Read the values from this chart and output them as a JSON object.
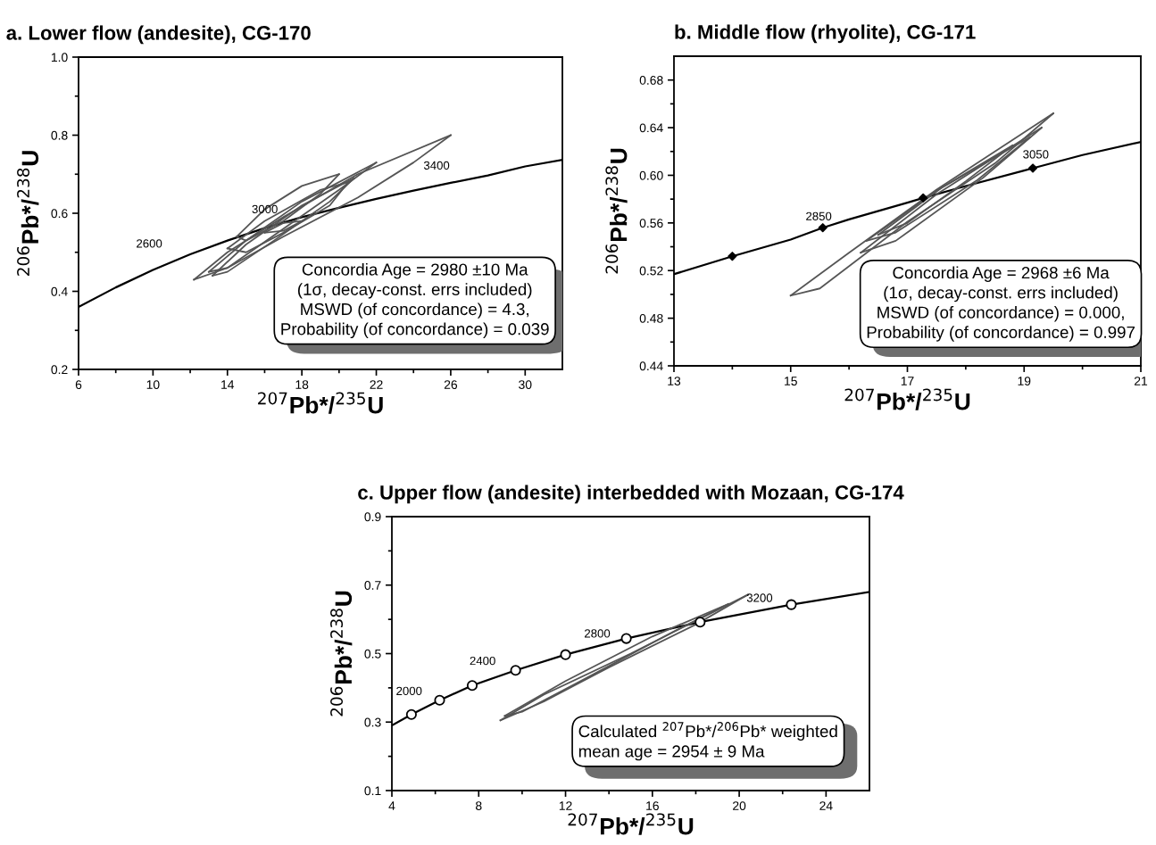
{
  "chart_data": [
    {
      "type": "line",
      "title": "a. Lower flow (andesite), CG-170",
      "xlabel": "$^{207}$Pb*/$^{235}$U",
      "ylabel": "$^{206}$Pb*/$^{238}$U",
      "xlim": [
        6,
        32
      ],
      "xticks": [
        6,
        {
          "value": 8,
          "label": null
        },
        10,
        {
          "value": 12,
          "label": null
        },
        14,
        {
          "value": 16,
          "label": null
        },
        18,
        {
          "value": 20,
          "label": null
        },
        22,
        {
          "value": 24,
          "label": null
        },
        26,
        {
          "value": 28,
          "label": null
        },
        30
      ],
      "ylim": [
        0.2,
        1.0
      ],
      "yticks": [
        {
          "value": 0.2,
          "label": "0.2"
        },
        {
          "value": 0.3,
          "label": null
        },
        {
          "value": 0.4,
          "label": "0.4"
        },
        {
          "value": 0.5,
          "label": null
        },
        {
          "value": 0.6,
          "label": "0.6"
        },
        {
          "value": 0.7,
          "label": null
        },
        {
          "value": 0.8,
          "label": "0.8"
        },
        {
          "value": 0.9,
          "label": null
        },
        {
          "value": 1.0,
          "label": "1.0"
        }
      ],
      "grid": false,
      "series": [
        {
          "color": "#000000",
          "x": [
            6,
            8,
            10,
            12,
            14,
            16,
            18,
            20,
            22,
            24,
            26,
            28,
            30,
            32
          ],
          "values": [
            0.36,
            0.41,
            0.455,
            0.495,
            0.53,
            0.562,
            0.59,
            0.614,
            0.637,
            0.658,
            0.678,
            0.697,
            0.72,
            0.737
          ]
        },
        {
          "color": "#555555",
          "x": [
            12.2,
            14,
            17,
            21,
            26
          ],
          "values": [
            0.43,
            0.5,
            0.59,
            0.7,
            0.8
          ]
        },
        {
          "color": "#555555",
          "x": [
            12.2,
            14,
            17,
            21,
            24,
            26
          ],
          "values": [
            0.43,
            0.46,
            0.54,
            0.64,
            0.73,
            0.8
          ]
        },
        {
          "color": "#555555",
          "x": [
            13,
            15,
            18,
            22
          ],
          "values": [
            0.45,
            0.53,
            0.63,
            0.73
          ]
        },
        {
          "color": "#555555",
          "x": [
            13,
            14,
            17,
            20,
            22
          ],
          "values": [
            0.45,
            0.46,
            0.56,
            0.66,
            0.73
          ]
        },
        {
          "color": "#555555",
          "x": [
            13.2,
            15,
            18,
            20.8
          ],
          "values": [
            0.44,
            0.52,
            0.62,
            0.69
          ]
        },
        {
          "color": "#555555",
          "x": [
            13.2,
            14,
            16.5,
            19.5,
            20.8
          ],
          "values": [
            0.44,
            0.45,
            0.53,
            0.63,
            0.69
          ]
        },
        {
          "color": "#555555",
          "x": [
            14.5,
            16,
            18,
            20
          ],
          "values": [
            0.54,
            0.61,
            0.67,
            0.7
          ]
        },
        {
          "color": "#555555",
          "x": [
            14.5,
            15,
            17,
            19,
            20
          ],
          "values": [
            0.54,
            0.53,
            0.58,
            0.65,
            0.7
          ]
        },
        {
          "color": "#555555",
          "x": [
            14,
            16,
            19,
            20.5
          ],
          "values": [
            0.51,
            0.58,
            0.66,
            0.68
          ]
        },
        {
          "color": "#555555",
          "x": [
            14,
            15,
            17,
            19.5,
            20.5
          ],
          "values": [
            0.51,
            0.5,
            0.55,
            0.62,
            0.68
          ]
        },
        {
          "color": "#555555",
          "x": [
            16,
            17,
            18
          ],
          "values": [
            0.55,
            0.575,
            0.58
          ]
        },
        {
          "color": "#555555",
          "x": [
            16,
            17,
            18
          ],
          "values": [
            0.55,
            0.555,
            0.58
          ]
        }
      ],
      "annotations": [
        "2600",
        "3000",
        "3400",
        "Concordia Age = 2980 ±10 Ma\n(1σ, decay-const. errs included)\nMSWD (of concordance) = 4.3,\nProbability (of concordance) = 0.039"
      ]
    },
    {
      "type": "line",
      "title": "b. Middle flow (rhyolite), CG-171",
      "xlabel": "$^{207}$Pb*/$^{235}$U",
      "ylabel": "$^{206}$Pb*/$^{238}$U",
      "xlim": [
        13,
        21
      ],
      "xticks": [
        13,
        {
          "value": 14,
          "label": null
        },
        15,
        {
          "value": 16,
          "label": null
        },
        17,
        {
          "value": 18,
          "label": null
        },
        19,
        {
          "value": 20,
          "label": null
        },
        21
      ],
      "ylim": [
        0.44,
        0.7
      ],
      "yticks": [
        0.44,
        {
          "value": 0.46,
          "label": null
        },
        0.48,
        {
          "value": 0.5,
          "label": null
        },
        0.52,
        {
          "value": 0.54,
          "label": null
        },
        0.56,
        {
          "value": 0.58,
          "label": null
        },
        {
          "value": 0.6,
          "label": "0.60"
        },
        {
          "value": 0.62,
          "label": null
        },
        0.64,
        {
          "value": 0.66,
          "label": null
        },
        0.68
      ],
      "grid": false,
      "series": [
        {
          "color": "#000000",
          "x": [
            13,
            14,
            15,
            15.55,
            16,
            17,
            17.27,
            18,
            19,
            19.15,
            20,
            21
          ],
          "values": [
            0.517,
            0.532,
            0.546,
            0.556,
            0.563,
            0.577,
            0.581,
            0.591,
            0.604,
            0.606,
            0.617,
            0.628
          ]
        },
        {
          "type": "scatter",
          "marker": "diamond",
          "color": "#000000",
          "x": [
            14,
            15.55,
            17.27,
            19.15
          ],
          "values": [
            0.532,
            0.556,
            0.581,
            0.606
          ]
        },
        {
          "color": "#555555",
          "x": [
            15,
            16,
            17.5,
            19.5
          ],
          "values": [
            0.499,
            0.535,
            0.588,
            0.652
          ]
        },
        {
          "color": "#555555",
          "x": [
            15,
            15.5,
            17,
            18.5,
            19.5
          ],
          "values": [
            0.499,
            0.505,
            0.561,
            0.61,
            0.652
          ]
        },
        {
          "color": "#555555",
          "x": [
            16.2,
            17.5,
            19.3
          ],
          "values": [
            0.535,
            0.584,
            0.64
          ]
        },
        {
          "color": "#555555",
          "x": [
            16.2,
            16.8,
            18.3,
            19.3
          ],
          "values": [
            0.535,
            0.545,
            0.598,
            0.64
          ]
        },
        {
          "color": "#555555",
          "x": [
            16.3,
            17.5,
            19.1
          ],
          "values": [
            0.545,
            0.587,
            0.632
          ]
        },
        {
          "color": "#555555",
          "x": [
            16.3,
            16.8,
            18.2,
            19.1
          ],
          "values": [
            0.545,
            0.552,
            0.596,
            0.632
          ]
        },
        {
          "color": "#555555",
          "x": [
            16.5,
            17.6,
            18.8
          ],
          "values": [
            0.55,
            0.59,
            0.625
          ]
        },
        {
          "color": "#555555",
          "x": [
            16.5,
            17,
            18,
            18.8
          ],
          "values": [
            0.55,
            0.56,
            0.595,
            0.625
          ]
        }
      ],
      "annotations": [
        "2850",
        "3050",
        "Concordia Age = 2968 ±6 Ma\n(1σ, decay-const. errs included)\nMSWD (of concordance) = 0.000,\nProbability (of concordance) = 0.997"
      ]
    },
    {
      "type": "line",
      "title": "c. Upper flow (andesite) interbedded with Mozaan, CG-174",
      "xlabel": "$^{207}$Pb*/$^{235}$U",
      "ylabel": "$^{206}$Pb*/$^{238}$U",
      "xlim": [
        4,
        26
      ],
      "xticks": [
        4,
        {
          "value": 6,
          "label": null
        },
        8,
        {
          "value": 10,
          "label": null
        },
        12,
        {
          "value": 14,
          "label": null
        },
        16,
        {
          "value": 18,
          "label": null
        },
        20,
        {
          "value": 22,
          "label": null
        },
        24
      ],
      "ylim": [
        0.1,
        0.9
      ],
      "yticks": [
        0.1,
        {
          "value": 0.2,
          "label": null
        },
        0.3,
        {
          "value": 0.4,
          "label": null
        },
        0.5,
        {
          "value": 0.6,
          "label": null
        },
        0.7,
        {
          "value": 0.8,
          "label": null
        },
        0.9
      ],
      "grid": false,
      "series": [
        {
          "color": "#000000",
          "x": [
            4,
            4.9,
            6.2,
            7.7,
            9.7,
            12,
            14.8,
            18.2,
            22.4,
            26
          ],
          "values": [
            0.29,
            0.322,
            0.364,
            0.407,
            0.451,
            0.497,
            0.544,
            0.592,
            0.643,
            0.68
          ]
        },
        {
          "type": "scatter",
          "marker": "circle",
          "color": "#000000",
          "x": [
            4.9,
            6.2,
            7.7,
            9.7,
            12,
            14.8,
            18.2,
            22.4
          ],
          "values": [
            0.322,
            0.364,
            0.407,
            0.451,
            0.497,
            0.544,
            0.592,
            0.643
          ]
        },
        {
          "color": "#555555",
          "x": [
            9,
            11,
            15,
            20.4
          ],
          "values": [
            0.305,
            0.38,
            0.5,
            0.672
          ]
        },
        {
          "color": "#555555",
          "x": [
            9,
            11,
            14,
            18,
            20.4
          ],
          "values": [
            0.305,
            0.36,
            0.46,
            0.585,
            0.672
          ]
        },
        {
          "color": "#555555",
          "x": [
            9.2,
            12,
            16,
            19.5
          ],
          "values": [
            0.318,
            0.42,
            0.55,
            0.645
          ]
        },
        {
          "color": "#555555",
          "x": [
            9.2,
            10,
            13,
            17,
            19.5
          ],
          "values": [
            0.318,
            0.33,
            0.43,
            0.565,
            0.645
          ]
        }
      ],
      "annotations": [
        "2000",
        "2400",
        "2800",
        "3200",
        "Calculated $^{207}$Pb*/$^{206}$Pb* weighted\nmean age = 2954 ± 9 Ma"
      ]
    }
  ]
}
